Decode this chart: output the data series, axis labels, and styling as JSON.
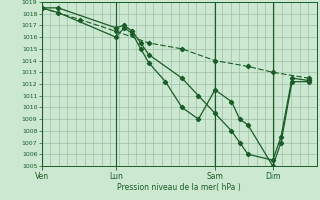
{
  "xlabel": "Pression niveau de la mer( hPa )",
  "ylim": [
    1005,
    1019
  ],
  "ytick_vals": [
    1005,
    1006,
    1007,
    1008,
    1009,
    1010,
    1011,
    1012,
    1013,
    1014,
    1015,
    1016,
    1017,
    1018,
    1019
  ],
  "bg_color": "#cce8d0",
  "grid_color": "#9dbfaa",
  "line_color": "#1a5c28",
  "day_labels": [
    "Ven",
    "Lun",
    "Sam",
    "Dim"
  ],
  "day_positions": [
    0.0,
    0.27,
    0.63,
    0.84
  ],
  "xlim": [
    0.0,
    1.0
  ],
  "series1_x": [
    0.0,
    0.06,
    0.27,
    0.3,
    0.33,
    0.36,
    0.39,
    0.45,
    0.51,
    0.57,
    0.63,
    0.69,
    0.72,
    0.75,
    0.84,
    0.87,
    0.91,
    0.97
  ],
  "series1_y": [
    1018.5,
    1018.1,
    1016.0,
    1016.8,
    1016.3,
    1015.0,
    1013.8,
    1012.2,
    1010.0,
    1009.0,
    1011.5,
    1010.5,
    1009.0,
    1008.5,
    1005.0,
    1007.0,
    1012.2,
    1012.2
  ],
  "series2_x": [
    0.0,
    0.06,
    0.27,
    0.3,
    0.33,
    0.36,
    0.39,
    0.51,
    0.57,
    0.63,
    0.69,
    0.72,
    0.75,
    0.84,
    0.87,
    0.91,
    0.97
  ],
  "series2_y": [
    1018.5,
    1018.5,
    1016.8,
    1017.0,
    1016.5,
    1015.5,
    1014.5,
    1012.5,
    1011.0,
    1009.5,
    1008.0,
    1007.0,
    1006.0,
    1005.5,
    1007.5,
    1012.5,
    1012.3
  ],
  "series3_x": [
    0.0,
    0.14,
    0.27,
    0.39,
    0.51,
    0.63,
    0.75,
    0.84,
    0.97
  ],
  "series3_y": [
    1018.5,
    1017.5,
    1016.5,
    1015.5,
    1015.0,
    1014.0,
    1013.5,
    1013.0,
    1012.5
  ],
  "n_vert_gridlines": 32
}
